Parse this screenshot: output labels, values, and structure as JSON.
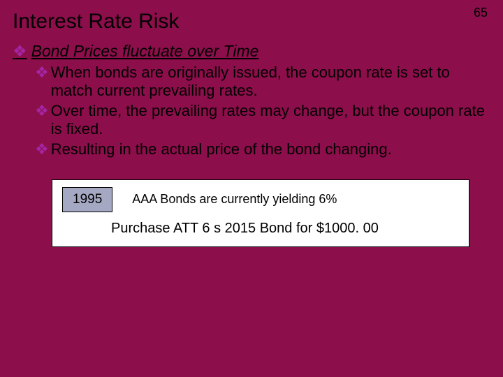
{
  "page_number": "65",
  "title": "Interest Rate Risk",
  "heading": "Bond Prices fluctuate over Time",
  "bullets": {
    "b1": "When bonds are originally issued, the coupon rate is set to match current prevailing rates.",
    "b2": "Over time, the prevailing rates may change, but the coupon rate is fixed.",
    "b3": "Resulting in the actual price of the bond changing."
  },
  "callout": {
    "year": "1995",
    "line1": "AAA Bonds are currently yielding 6%",
    "line2": "Purchase ATT 6 s 2015 Bond for $1000. 00"
  },
  "colors": {
    "background": "#8c0e4a",
    "bullet_color": "#a526a5",
    "year_box_bg": "#a5a8c2",
    "text_color": "#000000",
    "callout_bg": "#ffffff"
  }
}
